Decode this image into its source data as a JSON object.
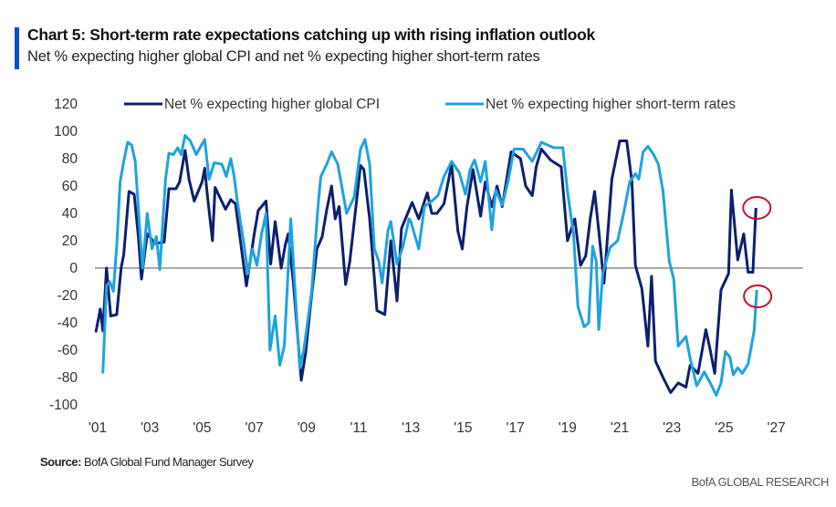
{
  "header": {
    "title": "Chart 5: Short-term rate expectations catching up with rising inflation outlook",
    "subtitle": "Net % expecting higher global CPI and net % expecting higher short-term rates"
  },
  "footer": {
    "source_label": "Source:",
    "source_text": "BofA Global Fund Manager Survey",
    "brand": "BofA GLOBAL RESEARCH"
  },
  "colors": {
    "accent": "#0b50c8",
    "cpi": "#0d1f6e",
    "rates": "#1ea3df",
    "annotation": "#c8102e"
  },
  "chart_data": {
    "type": "line",
    "title": "",
    "xlabel": "",
    "ylabel": "",
    "ylim": [
      -100,
      120
    ],
    "xlim": [
      2001,
      2027
    ],
    "yticks": [
      "120",
      "100",
      "80",
      "60",
      "40",
      "20",
      "0",
      "-20",
      "-40",
      "-60",
      "-80",
      "-100"
    ],
    "xticks": [
      "'01",
      "'03",
      "'05",
      "'07",
      "'09",
      "'11",
      "'13",
      "'15",
      "'17",
      "'19",
      "'21",
      "'23",
      "'25",
      "'27"
    ],
    "grid": false,
    "legend": "top",
    "annotations": "red circles around latest values of both series",
    "series": [
      {
        "name": "Net % expecting higher global CPI",
        "color": "#0d1f6e",
        "points": [
          [
            2000.93,
            -47
          ],
          [
            2001.1,
            -30
          ],
          [
            2001.2,
            -46
          ],
          [
            2001.34,
            0
          ],
          [
            2001.5,
            -35
          ],
          [
            2001.73,
            -34
          ],
          [
            2001.9,
            0
          ],
          [
            2002.0,
            10
          ],
          [
            2002.2,
            56
          ],
          [
            2002.4,
            54
          ],
          [
            2002.56,
            23
          ],
          [
            2002.68,
            -8
          ],
          [
            2002.9,
            25
          ],
          [
            2003.2,
            18
          ],
          [
            2003.55,
            19
          ],
          [
            2003.73,
            58
          ],
          [
            2004.0,
            58
          ],
          [
            2004.14,
            63
          ],
          [
            2004.35,
            86
          ],
          [
            2004.5,
            65
          ],
          [
            2004.7,
            49
          ],
          [
            2005.0,
            63
          ],
          [
            2005.1,
            73
          ],
          [
            2005.2,
            54
          ],
          [
            2005.4,
            20
          ],
          [
            2005.5,
            59
          ],
          [
            2005.9,
            43
          ],
          [
            2006.1,
            50
          ],
          [
            2006.28,
            47
          ],
          [
            2006.7,
            -13
          ],
          [
            2007.0,
            25
          ],
          [
            2007.15,
            42
          ],
          [
            2007.45,
            49
          ],
          [
            2007.63,
            3
          ],
          [
            2007.8,
            34
          ],
          [
            2008.03,
            0
          ],
          [
            2008.2,
            18
          ],
          [
            2008.3,
            25
          ],
          [
            2008.5,
            -11
          ],
          [
            2008.8,
            -82
          ],
          [
            2008.97,
            -62
          ],
          [
            2009.15,
            -28
          ],
          [
            2009.4,
            14
          ],
          [
            2009.6,
            23
          ],
          [
            2009.78,
            43
          ],
          [
            2009.96,
            60
          ],
          [
            2010.1,
            36
          ],
          [
            2010.25,
            45
          ],
          [
            2010.5,
            -12
          ],
          [
            2010.66,
            5
          ],
          [
            2011.07,
            75
          ],
          [
            2011.2,
            72
          ],
          [
            2011.42,
            36
          ],
          [
            2011.7,
            -31
          ],
          [
            2012.0,
            -34
          ],
          [
            2012.23,
            20
          ],
          [
            2012.47,
            -24
          ],
          [
            2012.64,
            29
          ],
          [
            2013.05,
            48
          ],
          [
            2013.3,
            36
          ],
          [
            2013.63,
            55
          ],
          [
            2013.8,
            40
          ],
          [
            2014.0,
            40
          ],
          [
            2014.27,
            47
          ],
          [
            2014.56,
            76
          ],
          [
            2014.8,
            27
          ],
          [
            2014.97,
            14
          ],
          [
            2015.15,
            45
          ],
          [
            2015.38,
            72
          ],
          [
            2015.67,
            38
          ],
          [
            2015.85,
            63
          ],
          [
            2016.1,
            45
          ],
          [
            2016.3,
            60
          ],
          [
            2016.5,
            45
          ],
          [
            2016.84,
            85
          ],
          [
            2017.2,
            80
          ],
          [
            2017.4,
            60
          ],
          [
            2017.65,
            53
          ],
          [
            2017.8,
            74
          ],
          [
            2018.0,
            87
          ],
          [
            2018.35,
            79
          ],
          [
            2018.76,
            74
          ],
          [
            2019.0,
            20
          ],
          [
            2019.28,
            36
          ],
          [
            2019.5,
            2
          ],
          [
            2019.7,
            9
          ],
          [
            2019.87,
            36
          ],
          [
            2020.04,
            56
          ],
          [
            2020.2,
            27
          ],
          [
            2020.4,
            -11
          ],
          [
            2020.7,
            65
          ],
          [
            2021.0,
            93
          ],
          [
            2021.27,
            93
          ],
          [
            2021.47,
            63
          ],
          [
            2021.6,
            2
          ],
          [
            2021.85,
            -15
          ],
          [
            2022.08,
            -57
          ],
          [
            2022.22,
            -6
          ],
          [
            2022.37,
            -68
          ],
          [
            2022.66,
            -80
          ],
          [
            2022.95,
            -91
          ],
          [
            2023.24,
            -84
          ],
          [
            2023.54,
            -87
          ],
          [
            2023.7,
            -71
          ],
          [
            2024.0,
            -77
          ],
          [
            2024.3,
            -45
          ],
          [
            2024.47,
            -60
          ],
          [
            2024.64,
            -77
          ],
          [
            2024.88,
            -16
          ],
          [
            2025.17,
            -4
          ],
          [
            2025.28,
            57
          ],
          [
            2025.52,
            6
          ],
          [
            2025.75,
            25
          ],
          [
            2025.92,
            -3
          ],
          [
            2026.1,
            -3
          ],
          [
            2026.22,
            44
          ]
        ]
      },
      {
        "name": "Net % expecting higher short-term rates",
        "color": "#1ea3df",
        "points": [
          [
            2001.2,
            -77
          ],
          [
            2001.34,
            -13
          ],
          [
            2001.47,
            -10
          ],
          [
            2001.6,
            -17
          ],
          [
            2001.73,
            16
          ],
          [
            2001.86,
            63
          ],
          [
            2002.0,
            78
          ],
          [
            2002.15,
            92
          ],
          [
            2002.3,
            90
          ],
          [
            2002.44,
            78
          ],
          [
            2002.6,
            32
          ],
          [
            2002.72,
            0
          ],
          [
            2002.9,
            40
          ],
          [
            2003.08,
            14
          ],
          [
            2003.25,
            23
          ],
          [
            2003.38,
            -1
          ],
          [
            2003.6,
            65
          ],
          [
            2003.73,
            84
          ],
          [
            2003.9,
            83
          ],
          [
            2004.07,
            88
          ],
          [
            2004.2,
            83
          ],
          [
            2004.35,
            97
          ],
          [
            2004.55,
            93
          ],
          [
            2004.78,
            83
          ],
          [
            2004.95,
            89
          ],
          [
            2005.1,
            94
          ],
          [
            2005.27,
            65
          ],
          [
            2005.47,
            77
          ],
          [
            2005.76,
            76
          ],
          [
            2005.93,
            67
          ],
          [
            2006.1,
            80
          ],
          [
            2006.22,
            68
          ],
          [
            2006.35,
            49
          ],
          [
            2006.6,
            18
          ],
          [
            2006.76,
            -4
          ],
          [
            2006.93,
            14
          ],
          [
            2007.1,
            2
          ],
          [
            2007.28,
            25
          ],
          [
            2007.45,
            40
          ],
          [
            2007.6,
            -60
          ],
          [
            2007.8,
            -35
          ],
          [
            2007.98,
            -71
          ],
          [
            2008.15,
            -57
          ],
          [
            2008.4,
            36
          ],
          [
            2008.74,
            -73
          ],
          [
            2008.9,
            -60
          ],
          [
            2009.2,
            -17
          ],
          [
            2009.45,
            47
          ],
          [
            2009.55,
            67
          ],
          [
            2009.78,
            76
          ],
          [
            2009.96,
            85
          ],
          [
            2010.2,
            76
          ],
          [
            2010.54,
            40
          ],
          [
            2010.83,
            52
          ],
          [
            2011.07,
            87
          ],
          [
            2011.24,
            94
          ],
          [
            2011.42,
            76
          ],
          [
            2011.6,
            14
          ],
          [
            2011.77,
            5
          ],
          [
            2011.9,
            -11
          ],
          [
            2012.12,
            27
          ],
          [
            2012.23,
            34
          ],
          [
            2012.47,
            3
          ],
          [
            2012.7,
            16
          ],
          [
            2012.93,
            36
          ],
          [
            2013.0,
            34
          ],
          [
            2013.3,
            14
          ],
          [
            2013.52,
            45
          ],
          [
            2013.8,
            49
          ],
          [
            2014.04,
            53
          ],
          [
            2014.27,
            67
          ],
          [
            2014.56,
            78
          ],
          [
            2014.85,
            70
          ],
          [
            2015.09,
            54
          ],
          [
            2015.27,
            72
          ],
          [
            2015.44,
            79
          ],
          [
            2015.67,
            63
          ],
          [
            2015.85,
            78
          ],
          [
            2016.1,
            28
          ],
          [
            2016.25,
            57
          ],
          [
            2016.5,
            46
          ],
          [
            2016.72,
            63
          ],
          [
            2016.95,
            87
          ],
          [
            2017.3,
            87
          ],
          [
            2017.65,
            78
          ],
          [
            2018.0,
            92
          ],
          [
            2018.47,
            88
          ],
          [
            2018.82,
            88
          ],
          [
            2019.0,
            56
          ],
          [
            2019.23,
            25
          ],
          [
            2019.4,
            -28
          ],
          [
            2019.64,
            -43
          ],
          [
            2019.81,
            -40
          ],
          [
            2019.96,
            16
          ],
          [
            2020.1,
            5
          ],
          [
            2020.2,
            -45
          ],
          [
            2020.35,
            -4
          ],
          [
            2020.63,
            15
          ],
          [
            2020.92,
            20
          ],
          [
            2021.15,
            40
          ],
          [
            2021.38,
            63
          ],
          [
            2021.6,
            69
          ],
          [
            2021.73,
            65
          ],
          [
            2021.9,
            85
          ],
          [
            2022.08,
            89
          ],
          [
            2022.3,
            83
          ],
          [
            2022.48,
            76
          ],
          [
            2022.66,
            56
          ],
          [
            2022.9,
            5
          ],
          [
            2023.07,
            -8
          ],
          [
            2023.24,
            -57
          ],
          [
            2023.54,
            -50
          ],
          [
            2023.7,
            -66
          ],
          [
            2023.95,
            -86
          ],
          [
            2024.24,
            -76
          ],
          [
            2024.47,
            -84
          ],
          [
            2024.7,
            -93
          ],
          [
            2024.88,
            -84
          ],
          [
            2025.05,
            -61
          ],
          [
            2025.22,
            -65
          ],
          [
            2025.35,
            -78
          ],
          [
            2025.52,
            -73
          ],
          [
            2025.7,
            -77
          ],
          [
            2025.92,
            -70
          ],
          [
            2026.15,
            -46
          ],
          [
            2026.25,
            -16
          ]
        ]
      }
    ]
  }
}
